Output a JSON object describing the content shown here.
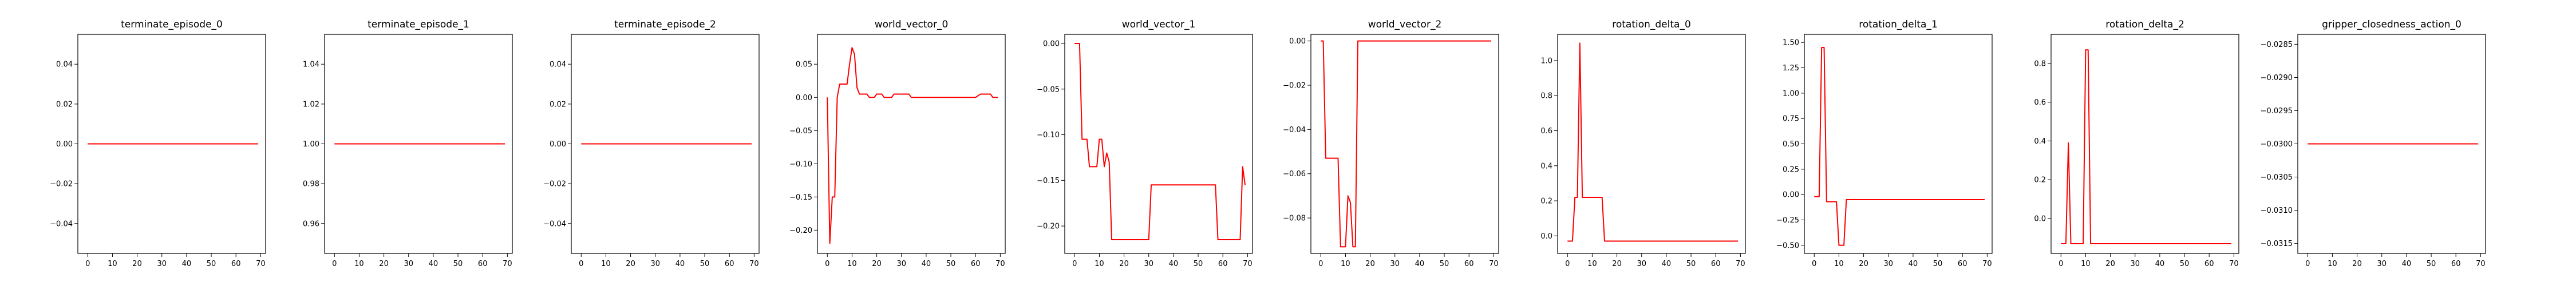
{
  "figure": {
    "line_color": "#ff0000",
    "frame_color": "#000000"
  },
  "chart_data": [
    {
      "type": "line",
      "title": "terminate_episode_0",
      "xlim": [
        -4,
        72
      ],
      "ylim": [
        -0.055,
        0.055
      ],
      "xticks": [
        0,
        10,
        20,
        30,
        40,
        50,
        60,
        70
      ],
      "yticks": [
        -0.04,
        -0.02,
        0.0,
        0.02,
        0.04
      ],
      "ytick_labels": [
        "−0.04",
        "−0.02",
        "0.00",
        "0.02",
        "0.04"
      ],
      "series": [
        {
          "x": [
            0,
            69
          ],
          "y": [
            0,
            0
          ]
        }
      ]
    },
    {
      "type": "line",
      "title": "terminate_episode_1",
      "xlim": [
        -4,
        72
      ],
      "ylim": [
        0.945,
        1.055
      ],
      "xticks": [
        0,
        10,
        20,
        30,
        40,
        50,
        60,
        70
      ],
      "yticks": [
        0.96,
        0.98,
        1.0,
        1.02,
        1.04
      ],
      "ytick_labels": [
        "0.96",
        "0.98",
        "1.00",
        "1.02",
        "1.04"
      ],
      "series": [
        {
          "x": [
            0,
            69
          ],
          "y": [
            1,
            1
          ]
        }
      ]
    },
    {
      "type": "line",
      "title": "terminate_episode_2",
      "xlim": [
        -4,
        72
      ],
      "ylim": [
        -0.055,
        0.055
      ],
      "xticks": [
        0,
        10,
        20,
        30,
        40,
        50,
        60,
        70
      ],
      "yticks": [
        -0.04,
        -0.02,
        0.0,
        0.02,
        0.04
      ],
      "ytick_labels": [
        "−0.04",
        "−0.02",
        "0.00",
        "0.02",
        "0.04"
      ],
      "series": [
        {
          "x": [
            0,
            69
          ],
          "y": [
            0,
            0
          ]
        }
      ]
    },
    {
      "type": "line",
      "title": "world_vector_0",
      "xlim": [
        -4,
        72
      ],
      "ylim": [
        -0.235,
        0.095
      ],
      "xticks": [
        0,
        10,
        20,
        30,
        40,
        50,
        60,
        70
      ],
      "yticks": [
        -0.2,
        -0.15,
        -0.1,
        -0.05,
        0.0,
        0.05
      ],
      "ytick_labels": [
        "−0.20",
        "−0.15",
        "−0.10",
        "−0.05",
        "0.00",
        "0.05"
      ],
      "series": [
        {
          "x": [
            0,
            1,
            2,
            3,
            4,
            5,
            6,
            7,
            8,
            9,
            10,
            11,
            12,
            13,
            14,
            15,
            16,
            17,
            18,
            19,
            20,
            21,
            22,
            23,
            24,
            25,
            26,
            27,
            28,
            29,
            30,
            31,
            32,
            33,
            34,
            35,
            36,
            40,
            45,
            50,
            55,
            60,
            62,
            63,
            64,
            65,
            66,
            67,
            68,
            69
          ],
          "y": [
            0.0,
            -0.22,
            -0.15,
            -0.15,
            0.0,
            0.02,
            0.02,
            0.02,
            0.02,
            0.05,
            0.075,
            0.065,
            0.015,
            0.005,
            0.005,
            0.005,
            0.005,
            0.0,
            0.0,
            0.0,
            0.005,
            0.005,
            0.005,
            0.0,
            0.0,
            0.0,
            0.0,
            0.005,
            0.005,
            0.005,
            0.005,
            0.005,
            0.005,
            0.005,
            0.0,
            0.0,
            0.0,
            0.0,
            0.0,
            0.0,
            0.0,
            0.0,
            0.005,
            0.005,
            0.005,
            0.005,
            0.005,
            0.0,
            0.0,
            0.0
          ]
        }
      ]
    },
    {
      "type": "line",
      "title": "world_vector_1",
      "xlim": [
        -4,
        72
      ],
      "ylim": [
        -0.23,
        0.01
      ],
      "xticks": [
        0,
        10,
        20,
        30,
        40,
        50,
        60,
        70
      ],
      "yticks": [
        -0.2,
        -0.15,
        -0.1,
        -0.05,
        0.0
      ],
      "ytick_labels": [
        "−0.20",
        "−0.15",
        "−0.10",
        "−0.05",
        "0.00"
      ],
      "series": [
        {
          "x": [
            0,
            2,
            3,
            4,
            5,
            6,
            7,
            8,
            9,
            10,
            11,
            12,
            13,
            14,
            15,
            16,
            17,
            18,
            20,
            25,
            30,
            31,
            35,
            40,
            45,
            50,
            55,
            57,
            58,
            60,
            65,
            66,
            67,
            68,
            69
          ],
          "y": [
            0.0,
            0.0,
            -0.105,
            -0.105,
            -0.105,
            -0.135,
            -0.135,
            -0.135,
            -0.135,
            -0.105,
            -0.105,
            -0.135,
            -0.12,
            -0.13,
            -0.215,
            -0.215,
            -0.215,
            -0.215,
            -0.215,
            -0.215,
            -0.215,
            -0.155,
            -0.155,
            -0.155,
            -0.155,
            -0.155,
            -0.155,
            -0.155,
            -0.215,
            -0.215,
            -0.215,
            -0.215,
            -0.215,
            -0.135,
            -0.155
          ]
        }
      ]
    },
    {
      "type": "line",
      "title": "world_vector_2",
      "xlim": [
        -4,
        72
      ],
      "ylim": [
        -0.096,
        0.003
      ],
      "xticks": [
        0,
        10,
        20,
        30,
        40,
        50,
        60,
        70
      ],
      "yticks": [
        -0.08,
        -0.06,
        -0.04,
        -0.02,
        0.0
      ],
      "ytick_labels": [
        "−0.08",
        "−0.06",
        "−0.04",
        "−0.02",
        "0.00"
      ],
      "series": [
        {
          "x": [
            0,
            1,
            2,
            3,
            4,
            5,
            6,
            7,
            8,
            9,
            10,
            11,
            12,
            13,
            14,
            15,
            16,
            17,
            18,
            20,
            30,
            40,
            50,
            60,
            69
          ],
          "y": [
            0.0,
            0.0,
            -0.053,
            -0.053,
            -0.053,
            -0.053,
            -0.053,
            -0.053,
            -0.093,
            -0.093,
            -0.093,
            -0.07,
            -0.073,
            -0.093,
            -0.093,
            0.0,
            0.0,
            0.0,
            0.0,
            0.0,
            0.0,
            0.0,
            0.0,
            0.0,
            0.0
          ]
        }
      ]
    },
    {
      "type": "line",
      "title": "rotation_delta_0",
      "xlim": [
        -4,
        72
      ],
      "ylim": [
        -0.1,
        1.15
      ],
      "xticks": [
        0,
        10,
        20,
        30,
        40,
        50,
        60,
        70
      ],
      "yticks": [
        0.0,
        0.2,
        0.4,
        0.6,
        0.8,
        1.0
      ],
      "ytick_labels": [
        "0.0",
        "0.2",
        "0.4",
        "0.6",
        "0.8",
        "1.0"
      ],
      "series": [
        {
          "x": [
            0,
            1,
            2,
            3,
            4,
            5,
            6,
            7,
            8,
            9,
            10,
            11,
            12,
            13,
            14,
            15,
            16,
            20,
            30,
            40,
            50,
            60,
            69
          ],
          "y": [
            -0.03,
            -0.03,
            -0.03,
            0.22,
            0.22,
            1.1,
            0.22,
            0.22,
            0.22,
            0.22,
            0.22,
            0.22,
            0.22,
            0.22,
            0.22,
            -0.03,
            -0.03,
            -0.03,
            -0.03,
            -0.03,
            -0.03,
            -0.03,
            -0.03
          ]
        }
      ]
    },
    {
      "type": "line",
      "title": "rotation_delta_1",
      "xlim": [
        -4,
        72
      ],
      "ylim": [
        -0.58,
        1.58
      ],
      "xticks": [
        0,
        10,
        20,
        30,
        40,
        50,
        60,
        70
      ],
      "yticks": [
        -0.5,
        -0.25,
        0.0,
        0.25,
        0.5,
        0.75,
        1.0,
        1.25,
        1.5
      ],
      "ytick_labels": [
        "−0.50",
        "−0.25",
        "0.00",
        "0.25",
        "0.50",
        "0.75",
        "1.00",
        "1.25",
        "1.50"
      ],
      "series": [
        {
          "x": [
            0,
            1,
            2,
            3,
            4,
            5,
            6,
            7,
            8,
            9,
            10,
            11,
            12,
            13,
            14,
            15,
            20,
            30,
            40,
            50,
            60,
            69
          ],
          "y": [
            -0.02,
            -0.02,
            -0.02,
            1.45,
            1.45,
            -0.07,
            -0.07,
            -0.07,
            -0.07,
            -0.07,
            -0.5,
            -0.5,
            -0.5,
            -0.05,
            -0.05,
            -0.05,
            -0.05,
            -0.05,
            -0.05,
            -0.05,
            -0.05,
            -0.05
          ]
        }
      ]
    },
    {
      "type": "line",
      "title": "rotation_delta_2",
      "xlim": [
        -4,
        72
      ],
      "ylim": [
        -0.18,
        0.95
      ],
      "xticks": [
        0,
        10,
        20,
        30,
        40,
        50,
        60,
        70
      ],
      "yticks": [
        0.0,
        0.2,
        0.4,
        0.6,
        0.8
      ],
      "ytick_labels": [
        "0.0",
        "0.2",
        "0.4",
        "0.6",
        "0.8"
      ],
      "series": [
        {
          "x": [
            0,
            1,
            2,
            3,
            4,
            5,
            6,
            7,
            8,
            9,
            10,
            11,
            12,
            13,
            14,
            15,
            20,
            30,
            40,
            50,
            60,
            69
          ],
          "y": [
            -0.13,
            -0.13,
            -0.13,
            0.39,
            -0.13,
            -0.13,
            -0.13,
            -0.13,
            -0.13,
            -0.13,
            0.87,
            0.87,
            -0.13,
            -0.13,
            -0.13,
            -0.13,
            -0.13,
            -0.13,
            -0.13,
            -0.13,
            -0.13,
            -0.13
          ]
        }
      ]
    },
    {
      "type": "line",
      "title": "gripper_closedness_action_0",
      "xlim": [
        -4,
        72
      ],
      "ylim": [
        -0.03165,
        -0.02835
      ],
      "xticks": [
        0,
        10,
        20,
        30,
        40,
        50,
        60,
        70
      ],
      "yticks": [
        -0.0315,
        -0.031,
        -0.0305,
        -0.03,
        -0.0295,
        -0.029,
        -0.0285
      ],
      "ytick_labels": [
        "−0.0315",
        "−0.0310",
        "−0.0305",
        "−0.0300",
        "−0.0295",
        "−0.0290",
        "−0.0285"
      ],
      "series": [
        {
          "x": [
            0,
            69
          ],
          "y": [
            -0.03,
            -0.03
          ]
        }
      ]
    }
  ]
}
